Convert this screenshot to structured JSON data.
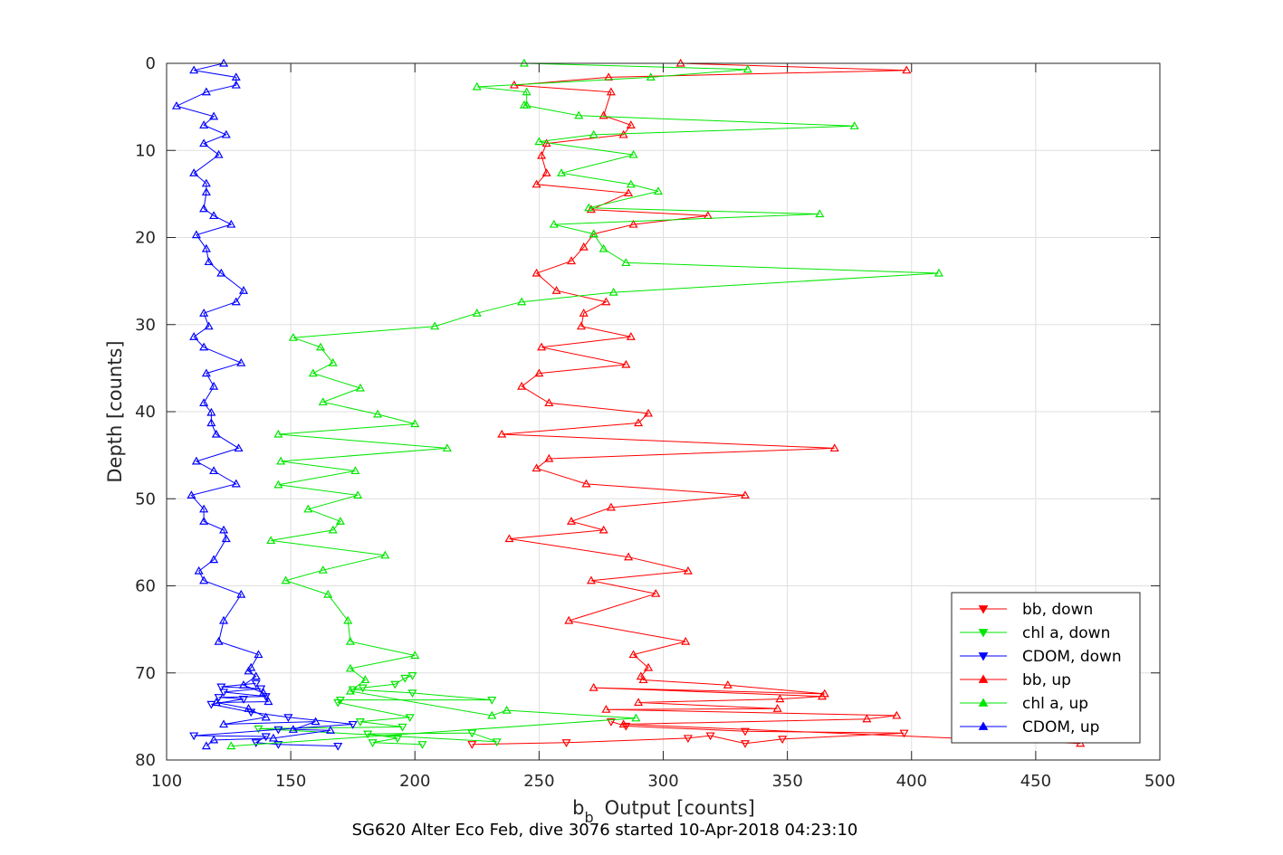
{
  "chart_data": {
    "type": "line",
    "title": "SG620 Alter Eco Feb, dive 3076 started 10-Apr-2018 04:23:10",
    "xlabel": "b",
    "xlabel_sub": "b",
    "xlabel_rest": "Output [counts]",
    "ylabel": "Depth [counts]",
    "xlim": [
      100,
      500
    ],
    "ylim": [
      0,
      80
    ],
    "y_reversed": true,
    "grid": true,
    "legend_position": "bottom-right",
    "xticks": [
      "100",
      "150",
      "200",
      "250",
      "300",
      "350",
      "400",
      "450",
      "500"
    ],
    "yticks": [
      "0",
      "10",
      "20",
      "30",
      "40",
      "50",
      "60",
      "70",
      "80"
    ],
    "series": [
      {
        "name": "bb, down",
        "color": "#ff0000",
        "marker": "triangle-down",
        "points": [
          [
            223,
            78.2
          ],
          [
            261,
            78.0
          ],
          [
            310,
            77.5
          ],
          [
            319,
            77.2
          ],
          [
            333,
            78.1
          ],
          [
            348,
            77.6
          ],
          [
            397,
            76.9
          ],
          [
            333,
            76.7
          ],
          [
            285,
            76.1
          ],
          [
            279,
            75.6
          ]
        ]
      },
      {
        "name": "chl a, down",
        "color": "#00e600",
        "marker": "triangle-down",
        "points": [
          [
            203,
            78.2
          ],
          [
            183,
            78.0
          ],
          [
            193,
            77.5
          ],
          [
            181,
            77.0
          ],
          [
            223,
            76.9
          ],
          [
            233,
            77.9
          ],
          [
            137,
            76.4
          ],
          [
            195,
            76.2
          ],
          [
            178,
            75.6
          ],
          [
            198,
            75.1
          ],
          [
            169,
            73.4
          ],
          [
            170,
            73.1
          ],
          [
            231,
            73.1
          ],
          [
            199,
            72.3
          ],
          [
            175,
            71.9
          ],
          [
            179,
            71.7
          ],
          [
            192,
            71.3
          ],
          [
            196,
            70.6
          ],
          [
            199,
            70.3
          ]
        ]
      },
      {
        "name": "CDOM, down",
        "color": "#0000ff",
        "marker": "triangle-down",
        "points": [
          [
            169,
            78.4
          ],
          [
            145,
            78.2
          ],
          [
            136,
            78.0
          ],
          [
            140,
            77.3
          ],
          [
            111,
            77.2
          ],
          [
            145,
            76.5
          ],
          [
            175,
            75.9
          ],
          [
            149,
            75.1
          ],
          [
            134,
            74.5
          ],
          [
            118,
            73.6
          ],
          [
            131,
            73.0
          ],
          [
            121,
            72.8
          ],
          [
            140,
            72.7
          ],
          [
            123,
            72.2
          ],
          [
            138,
            71.8
          ],
          [
            122,
            71.6
          ],
          [
            136,
            71.2
          ]
        ]
      },
      {
        "name": "bb, up",
        "color": "#ff0000",
        "marker": "triangle-up",
        "points": [
          [
            307,
            0.0
          ],
          [
            398,
            0.8
          ],
          [
            278,
            1.6
          ],
          [
            240,
            2.5
          ],
          [
            279,
            3.3
          ],
          [
            276,
            6.0
          ],
          [
            287,
            7.1
          ],
          [
            284,
            8.2
          ],
          [
            253,
            9.2
          ],
          [
            251,
            10.6
          ],
          [
            253,
            12.6
          ],
          [
            249,
            13.9
          ],
          [
            286,
            14.9
          ],
          [
            271,
            16.8
          ],
          [
            318,
            17.5
          ],
          [
            288,
            18.5
          ],
          [
            272,
            19.6
          ],
          [
            268,
            21.1
          ],
          [
            263,
            22.7
          ],
          [
            249,
            24.1
          ],
          [
            257,
            26.1
          ],
          [
            277,
            27.4
          ],
          [
            268,
            28.7
          ],
          [
            267,
            30.2
          ],
          [
            287,
            31.4
          ],
          [
            251,
            32.6
          ],
          [
            285,
            34.6
          ],
          [
            250,
            35.6
          ],
          [
            243,
            37.1
          ],
          [
            254,
            39.0
          ],
          [
            294,
            40.2
          ],
          [
            290,
            41.3
          ],
          [
            235,
            42.6
          ],
          [
            369,
            44.2
          ],
          [
            254,
            45.4
          ],
          [
            249,
            46.5
          ],
          [
            269,
            48.3
          ],
          [
            333,
            49.6
          ],
          [
            279,
            51.0
          ],
          [
            263,
            52.6
          ],
          [
            276,
            53.6
          ],
          [
            238,
            54.6
          ],
          [
            286,
            56.7
          ],
          [
            310,
            58.3
          ],
          [
            271,
            59.4
          ],
          [
            297,
            60.9
          ],
          [
            262,
            64.0
          ],
          [
            309,
            66.4
          ],
          [
            288,
            67.9
          ],
          [
            294,
            69.4
          ],
          [
            291,
            70.4
          ],
          [
            292,
            70.8
          ],
          [
            326,
            71.4
          ],
          [
            365,
            72.4
          ],
          [
            272,
            71.7
          ],
          [
            364,
            72.7
          ],
          [
            347,
            73.0
          ],
          [
            290,
            73.4
          ],
          [
            346,
            74.1
          ],
          [
            277,
            74.2
          ],
          [
            394,
            74.9
          ],
          [
            382,
            75.3
          ],
          [
            284,
            75.9
          ],
          [
            468,
            78.1
          ]
        ]
      },
      {
        "name": "chl a, up",
        "color": "#00e600",
        "marker": "triangle-up",
        "points": [
          [
            244,
            0.0
          ],
          [
            334,
            0.7
          ],
          [
            295,
            1.6
          ],
          [
            225,
            2.7
          ],
          [
            245,
            3.3
          ],
          [
            245,
            4.8
          ],
          [
            244,
            4.8
          ],
          [
            266,
            6.0
          ],
          [
            377,
            7.2
          ],
          [
            272,
            8.2
          ],
          [
            250,
            9.0
          ],
          [
            288,
            10.5
          ],
          [
            259,
            12.6
          ],
          [
            287,
            13.9
          ],
          [
            298,
            14.7
          ],
          [
            270,
            16.6
          ],
          [
            363,
            17.3
          ],
          [
            256,
            18.5
          ],
          [
            272,
            19.6
          ],
          [
            276,
            21.3
          ],
          [
            285,
            22.9
          ],
          [
            411,
            24.1
          ],
          [
            280,
            26.3
          ],
          [
            243,
            27.4
          ],
          [
            225,
            28.7
          ],
          [
            208,
            30.2
          ],
          [
            151,
            31.5
          ],
          [
            162,
            32.6
          ],
          [
            167,
            34.4
          ],
          [
            159,
            35.6
          ],
          [
            178,
            37.3
          ],
          [
            163,
            38.9
          ],
          [
            185,
            40.3
          ],
          [
            200,
            41.4
          ],
          [
            145,
            42.6
          ],
          [
            213,
            44.2
          ],
          [
            146,
            45.7
          ],
          [
            176,
            46.8
          ],
          [
            145,
            48.4
          ],
          [
            177,
            49.6
          ],
          [
            157,
            51.2
          ],
          [
            170,
            52.6
          ],
          [
            167,
            53.6
          ],
          [
            142,
            54.8
          ],
          [
            188,
            56.5
          ],
          [
            163,
            58.2
          ],
          [
            148,
            59.4
          ],
          [
            165,
            61.0
          ],
          [
            173,
            64.0
          ],
          [
            174,
            66.4
          ],
          [
            200,
            68.0
          ],
          [
            174,
            69.5
          ],
          [
            180,
            70.8
          ],
          [
            174,
            72.1
          ],
          [
            231,
            74.9
          ],
          [
            237,
            74.3
          ],
          [
            289,
            75.2
          ],
          [
            126,
            78.4
          ]
        ]
      },
      {
        "name": "CDOM, up",
        "color": "#0000ff",
        "marker": "triangle-up",
        "points": [
          [
            123,
            0.0
          ],
          [
            111,
            0.8
          ],
          [
            128,
            1.6
          ],
          [
            128,
            2.5
          ],
          [
            116,
            3.3
          ],
          [
            104,
            4.9
          ],
          [
            119,
            6.1
          ],
          [
            115,
            7.1
          ],
          [
            124,
            8.2
          ],
          [
            115,
            9.2
          ],
          [
            121,
            10.5
          ],
          [
            111,
            12.6
          ],
          [
            116,
            13.8
          ],
          [
            116,
            14.8
          ],
          [
            115,
            16.7
          ],
          [
            119,
            17.5
          ],
          [
            126,
            18.5
          ],
          [
            112,
            19.7
          ],
          [
            116,
            21.3
          ],
          [
            117,
            22.8
          ],
          [
            122,
            24.1
          ],
          [
            131,
            26.1
          ],
          [
            128,
            27.4
          ],
          [
            115,
            28.7
          ],
          [
            117,
            30.2
          ],
          [
            111,
            31.4
          ],
          [
            115,
            32.6
          ],
          [
            130,
            34.4
          ],
          [
            116,
            35.6
          ],
          [
            119,
            37.1
          ],
          [
            115,
            39.0
          ],
          [
            118,
            40.1
          ],
          [
            118,
            41.3
          ],
          [
            120,
            42.6
          ],
          [
            129,
            44.2
          ],
          [
            112,
            45.7
          ],
          [
            119,
            46.8
          ],
          [
            128,
            48.3
          ],
          [
            110,
            49.6
          ],
          [
            115,
            51.2
          ],
          [
            115,
            52.6
          ],
          [
            123,
            53.6
          ],
          [
            124,
            54.6
          ],
          [
            119,
            57.0
          ],
          [
            113,
            58.3
          ],
          [
            115,
            59.4
          ],
          [
            130,
            61.0
          ],
          [
            123,
            64.0
          ],
          [
            121,
            66.4
          ],
          [
            137,
            67.9
          ],
          [
            134,
            69.4
          ],
          [
            133,
            69.8
          ],
          [
            136,
            70.4
          ],
          [
            131,
            71.4
          ],
          [
            139,
            72.3
          ],
          [
            141,
            73.3
          ],
          [
            120,
            73.4
          ],
          [
            133,
            74.1
          ],
          [
            140,
            75.1
          ],
          [
            123,
            75.9
          ],
          [
            160,
            75.6
          ],
          [
            151,
            76.5
          ],
          [
            166,
            76.6
          ],
          [
            143,
            77.5
          ],
          [
            119,
            77.7
          ],
          [
            116,
            78.4
          ]
        ]
      }
    ]
  }
}
